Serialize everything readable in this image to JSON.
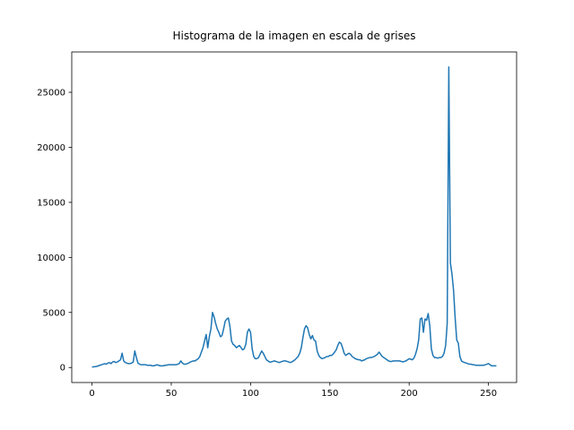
{
  "chart_data": {
    "type": "line",
    "title": "Histograma de la imagen en escala de grises",
    "x": [
      0,
      1,
      2,
      3,
      4,
      5,
      6,
      7,
      8,
      9,
      10,
      11,
      12,
      13,
      14,
      15,
      16,
      17,
      18,
      19,
      20,
      21,
      22,
      23,
      24,
      25,
      26,
      27,
      28,
      29,
      30,
      31,
      32,
      33,
      34,
      35,
      36,
      37,
      38,
      39,
      40,
      41,
      42,
      43,
      44,
      45,
      46,
      47,
      48,
      49,
      50,
      51,
      52,
      53,
      54,
      55,
      56,
      57,
      58,
      59,
      60,
      61,
      62,
      63,
      64,
      65,
      66,
      67,
      68,
      69,
      70,
      71,
      72,
      73,
      74,
      75,
      76,
      77,
      78,
      79,
      80,
      81,
      82,
      83,
      84,
      85,
      86,
      87,
      88,
      89,
      90,
      91,
      92,
      93,
      94,
      95,
      96,
      97,
      98,
      99,
      100,
      101,
      102,
      103,
      104,
      105,
      106,
      107,
      108,
      109,
      110,
      111,
      112,
      113,
      114,
      115,
      116,
      117,
      118,
      119,
      120,
      121,
      122,
      123,
      124,
      125,
      126,
      127,
      128,
      129,
      130,
      131,
      132,
      133,
      134,
      135,
      136,
      137,
      138,
      139,
      140,
      141,
      142,
      143,
      144,
      145,
      146,
      147,
      148,
      149,
      150,
      151,
      152,
      153,
      154,
      155,
      156,
      157,
      158,
      159,
      160,
      161,
      162,
      163,
      164,
      165,
      166,
      167,
      168,
      169,
      170,
      171,
      172,
      173,
      174,
      175,
      176,
      177,
      178,
      179,
      180,
      181,
      182,
      183,
      184,
      185,
      186,
      187,
      188,
      189,
      190,
      191,
      192,
      193,
      194,
      195,
      196,
      197,
      198,
      199,
      200,
      201,
      202,
      203,
      204,
      205,
      206,
      207,
      208,
      209,
      210,
      211,
      212,
      213,
      214,
      215,
      216,
      217,
      218,
      219,
      220,
      221,
      222,
      223,
      224,
      225,
      226,
      227,
      228,
      229,
      230,
      231,
      232,
      233,
      234,
      235,
      236,
      237,
      238,
      239,
      240,
      241,
      242,
      243,
      244,
      245,
      246,
      247,
      248,
      249,
      250,
      251,
      252,
      253,
      254,
      255
    ],
    "series": [
      {
        "color": "#1f77b4",
        "values": [
          50,
          60,
          80,
          100,
          150,
          200,
          250,
          300,
          350,
          300,
          400,
          450,
          350,
          500,
          550,
          450,
          500,
          600,
          700,
          1300,
          600,
          450,
          400,
          350,
          350,
          400,
          500,
          1500,
          900,
          400,
          300,
          250,
          250,
          250,
          250,
          200,
          200,
          200,
          150,
          150,
          200,
          250,
          200,
          150,
          150,
          150,
          200,
          200,
          250,
          250,
          250,
          250,
          250,
          250,
          300,
          350,
          600,
          400,
          300,
          300,
          350,
          400,
          500,
          550,
          600,
          600,
          700,
          800,
          1000,
          1400,
          1800,
          2400,
          3000,
          1800,
          2800,
          3500,
          5000,
          4600,
          4000,
          3500,
          3200,
          2800,
          2900,
          3500,
          4200,
          4400,
          4500,
          3700,
          2400,
          2100,
          2000,
          1800,
          1900,
          2000,
          1800,
          1600,
          1700,
          2100,
          3200,
          3500,
          3200,
          1700,
          1000,
          800,
          800,
          900,
          1200,
          1500,
          1300,
          1000,
          700,
          600,
          500,
          500,
          550,
          600,
          550,
          500,
          450,
          500,
          550,
          600,
          600,
          550,
          500,
          450,
          500,
          600,
          700,
          850,
          1000,
          1300,
          1800,
          2700,
          3500,
          3800,
          3600,
          3000,
          2600,
          2900,
          2500,
          2400,
          1500,
          1100,
          900,
          800,
          850,
          900,
          1000,
          1000,
          1100,
          1100,
          1200,
          1400,
          1600,
          2000,
          2300,
          2200,
          1800,
          1300,
          1100,
          1200,
          1300,
          1200,
          1000,
          900,
          800,
          750,
          700,
          700,
          600,
          650,
          700,
          800,
          850,
          900,
          900,
          950,
          1000,
          1100,
          1200,
          1400,
          1200,
          1000,
          900,
          800,
          700,
          600,
          550,
          550,
          600,
          600,
          600,
          600,
          600,
          550,
          500,
          550,
          600,
          700,
          800,
          750,
          700,
          850,
          1200,
          1700,
          2500,
          4400,
          4500,
          3200,
          4400,
          4300,
          4900,
          3800,
          1700,
          1100,
          900,
          900,
          850,
          900,
          900,
          1000,
          1300,
          2000,
          4000,
          27300,
          9500,
          8500,
          7000,
          4500,
          2500,
          2200,
          1000,
          600,
          500,
          450,
          400,
          350,
          300,
          300,
          250,
          250,
          200,
          200,
          200,
          200,
          200,
          200,
          250,
          300,
          350,
          250,
          150,
          150,
          150,
          150
        ]
      }
    ],
    "xlim": [
      -12.75,
      267.75
    ],
    "ylim": [
      -1365,
      28665
    ],
    "xticks": [
      0,
      50,
      100,
      150,
      200,
      250
    ],
    "yticks": [
      0,
      5000,
      10000,
      15000,
      20000,
      25000
    ]
  }
}
